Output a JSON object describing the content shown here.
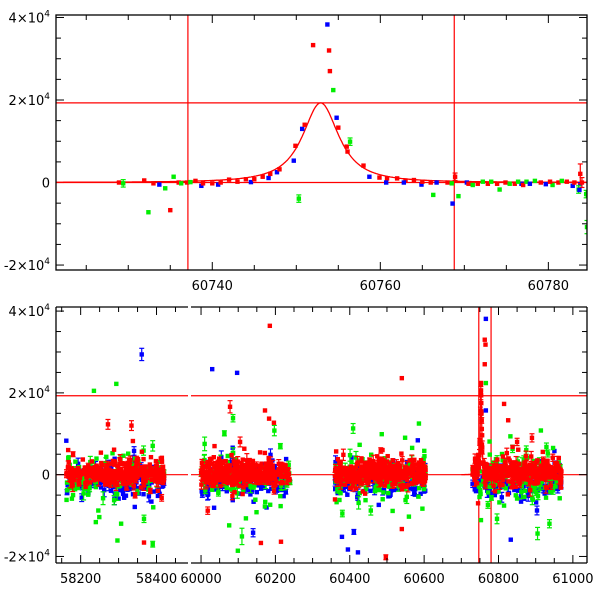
{
  "chart_data": [
    {
      "type": "scatter",
      "panel": "top",
      "title": "",
      "xlabel": "",
      "ylabel": "",
      "xlim": [
        60721.4,
        60784.6
      ],
      "ylim": [
        -21200,
        40600
      ],
      "x_major_ticks": [
        60740,
        60760,
        60780
      ],
      "x_tick_labels": [
        "60740",
        "60760",
        "60780"
      ],
      "x_minor_step": 5,
      "y_major_ticks": [
        40000,
        20000,
        0,
        -20000
      ],
      "y_tick_labels": [
        {
          "mant": "4×10",
          "exp": "4"
        },
        {
          "mant": "2×10",
          "exp": "4"
        },
        {
          "mant": "0",
          "exp": ""
        },
        {
          "mant": "-2×10",
          "exp": "4"
        }
      ],
      "y_minor_step": 5000,
      "grid": false,
      "reference_lines": {
        "vertical": [
          60737.1,
          60768.8
        ],
        "horizontal": [
          0,
          19300
        ]
      },
      "model": {
        "type": "peak",
        "t0": 60752.9,
        "peak": 19300,
        "width": 2.9,
        "power": 1.2
      },
      "point_format": "[time, flux, series(r/g/b), error]",
      "points": [
        [
          60728.9,
          0,
          "r",
          0
        ],
        [
          60729.4,
          -200,
          "g",
          900
        ],
        [
          60731.9,
          500,
          "r",
          0
        ],
        [
          60733.0,
          -200,
          "r",
          0
        ],
        [
          60733.7,
          -500,
          "b",
          0
        ],
        [
          60732.4,
          -7200,
          "g",
          0
        ],
        [
          60734.4,
          -1400,
          "g",
          0
        ],
        [
          60735.0,
          -6700,
          "r",
          0
        ],
        [
          60735.4,
          1400,
          "g",
          0
        ],
        [
          60736.0,
          0,
          "r",
          0
        ],
        [
          60736.3,
          -200,
          "g",
          0
        ],
        [
          60737.0,
          0,
          "r",
          0
        ],
        [
          60737.4,
          100,
          "g",
          0
        ],
        [
          60738.0,
          400,
          "r",
          0
        ],
        [
          60738.7,
          -800,
          "b",
          0
        ],
        [
          60738.9,
          -200,
          "r",
          0
        ],
        [
          60740.0,
          -200,
          "r",
          0
        ],
        [
          60740.7,
          -500,
          "b",
          0
        ],
        [
          60741.0,
          0,
          "r",
          0
        ],
        [
          60742.0,
          700,
          "r",
          0
        ],
        [
          60743.0,
          200,
          "r",
          0
        ],
        [
          60744.0,
          800,
          "r",
          0
        ],
        [
          60744.6,
          100,
          "b",
          0
        ],
        [
          60745.0,
          800,
          "r",
          0
        ],
        [
          60746.0,
          1400,
          "r",
          0
        ],
        [
          60746.7,
          1100,
          "b",
          0
        ],
        [
          60746.9,
          2100,
          "r",
          0
        ],
        [
          60747.7,
          2500,
          "b",
          0
        ],
        [
          60748.0,
          3200,
          "r",
          0
        ],
        [
          60749.7,
          5300,
          "b",
          0
        ],
        [
          60749.9,
          8900,
          "r",
          0
        ],
        [
          60750.3,
          -3900,
          "g",
          900
        ],
        [
          60750.7,
          13000,
          "b",
          0
        ],
        [
          60751.0,
          14000,
          "r",
          0
        ],
        [
          60752.0,
          33300,
          "r",
          0
        ],
        [
          60753.7,
          38300,
          "b",
          0
        ],
        [
          60753.9,
          32000,
          "r",
          0
        ],
        [
          60754.0,
          27000,
          "r",
          0
        ],
        [
          60754.4,
          22400,
          "g",
          0
        ],
        [
          60754.8,
          15700,
          "b",
          0
        ],
        [
          60755.0,
          13300,
          "r",
          0
        ],
        [
          60756.4,
          9900,
          "g",
          900
        ],
        [
          60756.0,
          8700,
          "r",
          0
        ],
        [
          60756.1,
          7500,
          "r",
          0
        ],
        [
          60758.0,
          4100,
          "r",
          0
        ],
        [
          60758.7,
          1400,
          "b",
          0
        ],
        [
          60759.9,
          1200,
          "r",
          0
        ],
        [
          60760.8,
          1000,
          "r",
          0
        ],
        [
          60760.7,
          0,
          "b",
          0
        ],
        [
          60762.0,
          1000,
          "r",
          0
        ],
        [
          60763.0,
          500,
          "r",
          0
        ],
        [
          60762.8,
          0,
          "b",
          0
        ],
        [
          60764.0,
          600,
          "r",
          0
        ],
        [
          60764.9,
          -500,
          "b",
          0
        ],
        [
          60765.0,
          200,
          "r",
          0
        ],
        [
          60766.0,
          0,
          "r",
          0
        ],
        [
          60766.7,
          0,
          "b",
          0
        ],
        [
          60766.3,
          -3000,
          "g",
          0
        ],
        [
          60768.0,
          0,
          "r",
          0
        ],
        [
          60768.5,
          -200,
          "g",
          0
        ],
        [
          60768.9,
          1400,
          "r",
          900
        ],
        [
          60768.6,
          -5100,
          "b",
          0
        ],
        [
          60769.3,
          -3300,
          "g",
          0
        ],
        [
          60770.3,
          0,
          "b",
          0
        ],
        [
          60770.5,
          -300,
          "r",
          0
        ],
        [
          60771.0,
          -600,
          "g",
          0
        ],
        [
          60771.6,
          -300,
          "r",
          0
        ],
        [
          60772.2,
          200,
          "g",
          0
        ],
        [
          60772.8,
          -300,
          "r",
          0
        ],
        [
          60773.2,
          200,
          "g",
          0
        ],
        [
          60774.2,
          -1700,
          "g",
          0
        ],
        [
          60773.9,
          -300,
          "r",
          0
        ],
        [
          60774.9,
          0,
          "r",
          0
        ],
        [
          60775.4,
          -300,
          "g",
          0
        ],
        [
          60776.0,
          -300,
          "r",
          0
        ],
        [
          60776.8,
          -300,
          "b",
          0
        ],
        [
          60776.4,
          200,
          "g",
          0
        ],
        [
          60777.0,
          -600,
          "r",
          0
        ],
        [
          60777.4,
          200,
          "g",
          0
        ],
        [
          60777.8,
          -300,
          "b",
          0
        ],
        [
          60778.4,
          400,
          "g",
          0
        ],
        [
          60779.1,
          0,
          "r",
          0
        ],
        [
          60779.7,
          -400,
          "b",
          0
        ],
        [
          60780.5,
          -600,
          "g",
          0
        ],
        [
          60780.2,
          200,
          "r",
          0
        ],
        [
          60781.2,
          0,
          "r",
          0
        ],
        [
          60781.6,
          400,
          "g",
          0
        ],
        [
          60782.2,
          200,
          "r",
          0
        ],
        [
          60782.9,
          -800,
          "b",
          0
        ],
        [
          60783.1,
          0,
          "r",
          0
        ],
        [
          60783.8,
          -400,
          "b",
          0
        ],
        [
          60783.6,
          -1700,
          "g",
          900
        ],
        [
          60784.5,
          -2800,
          "g",
          900
        ],
        [
          60784.6,
          -10800,
          "g",
          1600
        ],
        [
          60783.8,
          2100,
          "r",
          2400
        ],
        [
          60784.0,
          0,
          "r",
          1200
        ],
        [
          60783.7,
          -1800,
          "b",
          0
        ]
      ]
    },
    {
      "type": "scatter",
      "panel": "bottom",
      "title": "",
      "xlabel": "",
      "ylabel": "",
      "broken_x_axis": [
        [
          58135,
          58483
        ],
        [
          59973,
          61038
        ]
      ],
      "ylim": [
        -21600,
        41000
      ],
      "x_major_ticks": [
        58200,
        58400,
        60000,
        60200,
        60400,
        60600,
        60800,
        61000
      ],
      "x_tick_labels": [
        "58200",
        "58400",
        "60000",
        "60200",
        "60400",
        "60600",
        "60800",
        "61000"
      ],
      "x_minor_step": 50,
      "y_major_ticks": [
        40000,
        20000,
        0,
        -20000
      ],
      "y_tick_labels": [
        {
          "mant": "4×10",
          "exp": "4"
        },
        {
          "mant": "2×10",
          "exp": "4"
        },
        {
          "mant": "0",
          "exp": ""
        },
        {
          "mant": "-2×10",
          "exp": "4"
        }
      ],
      "y_minor_step": 5000,
      "grid": false,
      "reference_lines": {
        "vertical": [
          60747,
          60780
        ],
        "horizontal": [
          0,
          19300
        ]
      },
      "seasons": [
        {
          "start": 58162,
          "end": 58420,
          "n": 260
        },
        {
          "start": 60000,
          "end": 60240,
          "n": 260
        },
        {
          "start": 60360,
          "end": 60605,
          "n": 280
        },
        {
          "start": 60730,
          "end": 60970,
          "n": 280
        }
      ],
      "series_scatter": {
        "r": {
          "bias": 300,
          "sd": 1400
        },
        "g": {
          "bias": -600,
          "sd": 2600
        },
        "b": {
          "bias": -1500,
          "sd": 1800
        }
      },
      "outliers": [
        [
          58361,
          29400,
          "b",
          1500
        ],
        [
          58235,
          20500,
          "g",
          0
        ],
        [
          58294,
          22200,
          "g",
          0
        ],
        [
          58272,
          12300,
          "r",
          1200
        ],
        [
          58334,
          12000,
          "r",
          1200
        ],
        [
          58367,
          -10800,
          "g",
          900
        ],
        [
          58240,
          -11600,
          "g",
          0
        ],
        [
          58297,
          -16100,
          "g",
          0
        ],
        [
          58367,
          -16600,
          "r",
          0
        ],
        [
          58390,
          -17000,
          "g",
          700
        ],
        [
          58180,
          5000,
          "r",
          600
        ],
        [
          58180,
          -5000,
          "g",
          0
        ],
        [
          60185,
          36400,
          "r",
          0
        ],
        [
          60030,
          25800,
          "b",
          0
        ],
        [
          60097,
          24900,
          "b",
          0
        ],
        [
          60078,
          16600,
          "r",
          1500
        ],
        [
          60172,
          15700,
          "r",
          0
        ],
        [
          60183,
          13700,
          "r",
          0
        ],
        [
          60196,
          12700,
          "r",
          0
        ],
        [
          60086,
          13800,
          "g",
          900
        ],
        [
          60099,
          -18600,
          "g",
          0
        ],
        [
          60110,
          -15100,
          "g",
          2000
        ],
        [
          60161,
          -16700,
          "r",
          0
        ],
        [
          60215,
          -16400,
          "r",
          0
        ],
        [
          60140,
          -14200,
          "b",
          1000
        ],
        [
          60105,
          8000,
          "r",
          1200
        ],
        [
          60018,
          -8800,
          "r",
          900
        ],
        [
          60540,
          23600,
          "r",
          0
        ],
        [
          60409,
          11300,
          "g",
          1200
        ],
        [
          60486,
          9900,
          "g",
          0
        ],
        [
          60586,
          12500,
          "g",
          0
        ],
        [
          60583,
          8400,
          "b",
          0
        ],
        [
          60379,
          -15200,
          "b",
          0
        ],
        [
          60395,
          -18300,
          "b",
          0
        ],
        [
          60422,
          -19000,
          "b",
          0
        ],
        [
          60540,
          -13300,
          "r",
          0
        ],
        [
          60497,
          -20200,
          "r",
          600
        ],
        [
          60411,
          -14000,
          "b",
          600
        ],
        [
          60380,
          -9500,
          "g",
          800
        ],
        [
          60766,
          38100,
          "b",
          0
        ],
        [
          60763,
          33000,
          "r",
          0
        ],
        [
          60765,
          31800,
          "r",
          0
        ],
        [
          60763,
          27000,
          "r",
          0
        ],
        [
          60766,
          22400,
          "g",
          0
        ],
        [
          60766,
          15700,
          "b",
          0
        ],
        [
          60815,
          17300,
          "r",
          0
        ],
        [
          60826,
          13300,
          "r",
          0
        ],
        [
          60914,
          10800,
          "g",
          0
        ],
        [
          60833,
          -15900,
          "b",
          0
        ],
        [
          60796,
          -10800,
          "g",
          1200
        ],
        [
          60905,
          -14400,
          "g",
          1500
        ],
        [
          60937,
          -12000,
          "g",
          1000
        ],
        [
          60745,
          -7000,
          "r",
          0
        ],
        [
          60890,
          9000,
          "r",
          1000
        ],
        [
          60850,
          8000,
          "r",
          900
        ]
      ]
    }
  ],
  "colors": {
    "r": "#ff0000",
    "g": "#00ee00",
    "b": "#0000ff",
    "line": "#ff0000",
    "axis": "#000000"
  }
}
